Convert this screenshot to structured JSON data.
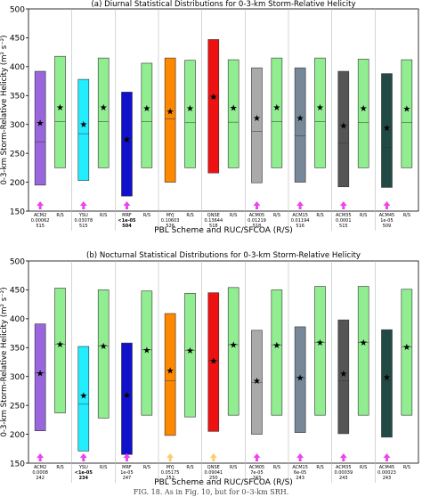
{
  "figure": {
    "caption": "FIG. 18. As in Fig. 10, but for 0–3-km SRH."
  },
  "chart_data": [
    {
      "type": "box",
      "title": "(a) Diurnal Statistical Distributions for 0-3-km Storm-Relative Helicity",
      "xlabel": "PBL Scheme and RUC/SFCOA (R/S)",
      "ylabel": "0-3-km Storm-Relative Helicity (m² s⁻²)",
      "ylim": [
        150,
        500
      ],
      "yticks": [
        150,
        200,
        250,
        300,
        350,
        400,
        450,
        500
      ],
      "grid": false,
      "pairs": [
        {
          "scheme": "ACM2",
          "pvalue": "0.00062",
          "n": "515",
          "bold": false,
          "arrow_color": "#ee44ee",
          "color": "#9966dd",
          "scheme_box": {
            "low": 195,
            "high": 392,
            "median": 270,
            "mean": 303
          },
          "rs_box": {
            "low": 225,
            "high": 418,
            "median": 305,
            "mean": 330
          }
        },
        {
          "scheme": "YSU",
          "pvalue": "0.03078",
          "n": "515",
          "bold": false,
          "arrow_color": "#ee44ee",
          "color": "#22eeff",
          "scheme_box": {
            "low": 203,
            "high": 378,
            "median": 284,
            "mean": 300
          },
          "rs_box": {
            "low": 225,
            "high": 415,
            "median": 305,
            "mean": 330
          }
        },
        {
          "scheme": "MRF",
          "pvalue": "<1e-05",
          "n": "504",
          "bold": true,
          "arrow_color": "#ee44ee",
          "color": "#1111cc",
          "scheme_box": {
            "low": 176,
            "high": 356,
            "median": 274,
            "mean": 274
          },
          "rs_box": {
            "low": 225,
            "high": 406,
            "median": 305,
            "mean": 328
          }
        },
        {
          "scheme": "MYJ",
          "pvalue": "0.10603",
          "n": "526",
          "bold": false,
          "arrow_color": null,
          "color": "#ff8800",
          "scheme_box": {
            "low": 200,
            "high": 415,
            "median": 310,
            "mean": 323
          },
          "rs_box": {
            "low": 225,
            "high": 411,
            "median": 303,
            "mean": 328
          }
        },
        {
          "scheme": "QNSE",
          "pvalue": "0.13644",
          "n": "518",
          "bold": false,
          "arrow_color": null,
          "color": "#ee1111",
          "scheme_box": {
            "low": 216,
            "high": 447,
            "median": 346,
            "mean": 348
          },
          "rs_box": {
            "low": 225,
            "high": 412,
            "median": 304,
            "mean": 329
          }
        },
        {
          "scheme": "ACM05",
          "pvalue": "0.01219",
          "n": "518",
          "bold": false,
          "arrow_color": "#ee44ee",
          "color": "#aaaaaa",
          "scheme_box": {
            "low": 199,
            "high": 398,
            "median": 288,
            "mean": 311
          },
          "rs_box": {
            "low": 225,
            "high": 415,
            "median": 305,
            "mean": 330
          }
        },
        {
          "scheme": "ACM15",
          "pvalue": "0.01194",
          "n": "516",
          "bold": false,
          "arrow_color": "#ee44ee",
          "color": "#778899",
          "scheme_box": {
            "low": 200,
            "high": 398,
            "median": 280,
            "mean": 311
          },
          "rs_box": {
            "low": 225,
            "high": 415,
            "median": 305,
            "mean": 330
          }
        },
        {
          "scheme": "ACM35",
          "pvalue": "0.0001",
          "n": "515",
          "bold": false,
          "arrow_color": "#ee44ee",
          "color": "#555555",
          "scheme_box": {
            "low": 192,
            "high": 392,
            "median": 268,
            "mean": 298
          },
          "rs_box": {
            "low": 225,
            "high": 413,
            "median": 303,
            "mean": 328
          }
        },
        {
          "scheme": "ACM45",
          "pvalue": "1e-05",
          "n": "509",
          "bold": false,
          "arrow_color": "#ee44ee",
          "color": "#224a44",
          "scheme_box": {
            "low": 191,
            "high": 388,
            "median": 260,
            "mean": 294
          },
          "rs_box": {
            "low": 225,
            "high": 412,
            "median": 303,
            "mean": 327
          }
        }
      ]
    },
    {
      "type": "box",
      "title": "(b) Nocturnal Statistical Distributions for 0-3-km Storm-Relative Helicity",
      "xlabel": "PBL Scheme and RUC/SFCOA (R/S)",
      "ylabel": "0-3-km Storm-Relative Helicity (m² s⁻²)",
      "ylim": [
        150,
        500
      ],
      "yticks": [
        150,
        200,
        250,
        300,
        350,
        400,
        450,
        500
      ],
      "grid": false,
      "pairs": [
        {
          "scheme": "ACM2",
          "pvalue": "0.0008",
          "n": "242",
          "bold": false,
          "arrow_color": "#ee44ee",
          "color": "#9966dd",
          "scheme_box": {
            "low": 206,
            "high": 391,
            "median": 306,
            "mean": 306
          },
          "rs_box": {
            "low": 237,
            "high": 453,
            "median": 356,
            "mean": 356
          }
        },
        {
          "scheme": "YSU",
          "pvalue": "<1e-05",
          "n": "234",
          "bold": true,
          "arrow_color": "#ee44ee",
          "color": "#22eeff",
          "scheme_box": {
            "low": 171,
            "high": 352,
            "median": 252,
            "mean": 267
          },
          "rs_box": {
            "low": 228,
            "high": 450,
            "median": 353,
            "mean": 353
          }
        },
        {
          "scheme": "MRF",
          "pvalue": "1e-05",
          "n": "247",
          "bold": false,
          "arrow_color": "#ee44ee",
          "color": "#1111cc",
          "scheme_box": {
            "low": 165,
            "high": 358,
            "median": 270,
            "mean": 268
          },
          "rs_box": {
            "low": 233,
            "high": 448,
            "median": 346,
            "mean": 346
          }
        },
        {
          "scheme": "MYJ",
          "pvalue": "0.05175",
          "n": "252",
          "bold": false,
          "arrow_color": "#ffcc66",
          "color": "#ff8800",
          "scheme_box": {
            "low": 198,
            "high": 409,
            "median": 293,
            "mean": 310
          },
          "rs_box": {
            "low": 230,
            "high": 444,
            "median": 345,
            "mean": 345
          }
        },
        {
          "scheme": "QNSE",
          "pvalue": "0.09041",
          "n": "250",
          "bold": false,
          "arrow_color": "#ffcc66",
          "color": "#ee1111",
          "scheme_box": {
            "low": 205,
            "high": 445,
            "median": 327,
            "mean": 327
          },
          "rs_box": {
            "low": 233,
            "high": 454,
            "median": 355,
            "mean": 355
          }
        },
        {
          "scheme": "ACM05",
          "pvalue": "7e-05",
          "n": "243",
          "bold": false,
          "arrow_color": "#ee44ee",
          "color": "#aaaaaa",
          "scheme_box": {
            "low": 200,
            "high": 380,
            "median": 290,
            "mean": 293
          },
          "rs_box": {
            "low": 233,
            "high": 450,
            "median": 354,
            "mean": 354
          }
        },
        {
          "scheme": "ACM15",
          "pvalue": "6e-05",
          "n": "243",
          "bold": false,
          "arrow_color": "#ee44ee",
          "color": "#778899",
          "scheme_box": {
            "low": 203,
            "high": 386,
            "median": 298,
            "mean": 298
          },
          "rs_box": {
            "low": 233,
            "high": 456,
            "median": 359,
            "mean": 359
          }
        },
        {
          "scheme": "ACM35",
          "pvalue": "0.00039",
          "n": "243",
          "bold": false,
          "arrow_color": "#ee44ee",
          "color": "#555555",
          "scheme_box": {
            "low": 201,
            "high": 398,
            "median": 293,
            "mean": 305
          },
          "rs_box": {
            "low": 233,
            "high": 456,
            "median": 359,
            "mean": 359
          }
        },
        {
          "scheme": "ACM45",
          "pvalue": "0.00023",
          "n": "243",
          "bold": false,
          "arrow_color": "#ee44ee",
          "color": "#224a44",
          "scheme_box": {
            "low": 195,
            "high": 381,
            "median": 293,
            "mean": 299
          },
          "rs_box": {
            "low": 233,
            "high": 451,
            "median": 351,
            "mean": 351
          }
        }
      ]
    }
  ],
  "rs_label": "R/S",
  "rs_color": "#90ee90",
  "star_glyph": "★"
}
